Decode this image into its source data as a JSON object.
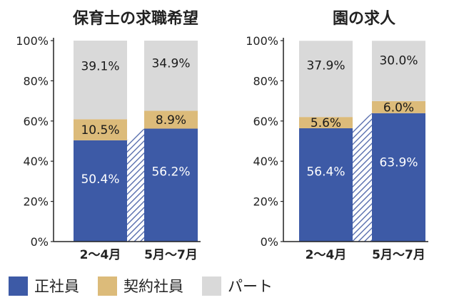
{
  "colors": {
    "seishain": "#3d5aa6",
    "keiyaku": "#dcbb7a",
    "part": "#d9d9d9",
    "hatch": "#4c64a8",
    "axis": "#222222",
    "label_dark": "#1a1a1a",
    "label_light": "#ffffff"
  },
  "legend": [
    {
      "key": "seishain",
      "label": "正社員"
    },
    {
      "key": "keiyaku",
      "label": "契約社員"
    },
    {
      "key": "part",
      "label": "パート"
    }
  ],
  "chart_data": [
    {
      "type": "bar",
      "stacked": true,
      "title": "保育士の求職希望",
      "categories": [
        "2〜4月",
        "5月〜7月"
      ],
      "ylim": [
        0,
        100
      ],
      "yticks": [
        "0%",
        "20%",
        "40%",
        "60%",
        "80%",
        "100%"
      ],
      "series": [
        {
          "name": "正社員",
          "key": "seishain",
          "values": [
            50.4,
            56.2
          ],
          "labels": [
            "50.4%",
            "56.2%"
          ]
        },
        {
          "name": "契約社員",
          "key": "keiyaku",
          "values": [
            10.5,
            8.9
          ],
          "labels": [
            "10.5%",
            "8.9%"
          ]
        },
        {
          "name": "パート",
          "key": "part",
          "values": [
            39.1,
            34.9
          ],
          "labels": [
            "39.1%",
            "34.9%"
          ]
        }
      ]
    },
    {
      "type": "bar",
      "stacked": true,
      "title": "園の求人",
      "categories": [
        "2〜4月",
        "5月〜7月"
      ],
      "ylim": [
        0,
        100
      ],
      "yticks": [
        "0%",
        "20%",
        "40%",
        "60%",
        "80%",
        "100%"
      ],
      "series": [
        {
          "name": "正社員",
          "key": "seishain",
          "values": [
            56.4,
            63.9
          ],
          "labels": [
            "56.4%",
            "63.9%"
          ]
        },
        {
          "name": "契約社員",
          "key": "keiyaku",
          "values": [
            5.6,
            6.0
          ],
          "labels": [
            "5.6%",
            "6.0%"
          ]
        },
        {
          "name": "パート",
          "key": "part",
          "values": [
            37.9,
            30.0
          ],
          "labels": [
            "37.9%",
            "30.0%"
          ]
        }
      ]
    }
  ]
}
